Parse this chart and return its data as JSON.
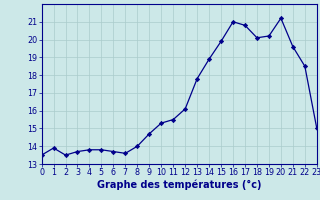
{
  "hours": [
    0,
    1,
    2,
    3,
    4,
    5,
    6,
    7,
    8,
    9,
    10,
    11,
    12,
    13,
    14,
    15,
    16,
    17,
    18,
    19,
    20,
    21,
    22,
    23
  ],
  "temps": [
    13.5,
    13.9,
    13.5,
    13.7,
    13.8,
    13.8,
    13.7,
    13.6,
    14.0,
    14.7,
    15.3,
    15.5,
    16.1,
    17.8,
    18.9,
    19.9,
    21.0,
    20.8,
    20.1,
    20.2,
    21.2,
    19.6,
    18.5,
    15.0
  ],
  "line_color": "#00008b",
  "marker": "D",
  "marker_size": 2.2,
  "bg_color": "#cce8e8",
  "grid_color": "#aacccc",
  "xlabel": "Graphe des températures (°c)",
  "ylim": [
    13,
    22
  ],
  "xlim": [
    0,
    23
  ],
  "yticks": [
    13,
    14,
    15,
    16,
    17,
    18,
    19,
    20,
    21
  ],
  "xtick_labels": [
    "0",
    "1",
    "2",
    "3",
    "4",
    "5",
    "6",
    "7",
    "8",
    "9",
    "10",
    "11",
    "12",
    "13",
    "14",
    "15",
    "16",
    "17",
    "18",
    "19",
    "20",
    "21",
    "22",
    "23"
  ],
  "tick_color": "#00008b",
  "axis_color": "#00008b",
  "label_fontsize": 7,
  "tick_fontsize": 5.8,
  "ylabel_fontsize": 6.5,
  "line_width": 0.9
}
